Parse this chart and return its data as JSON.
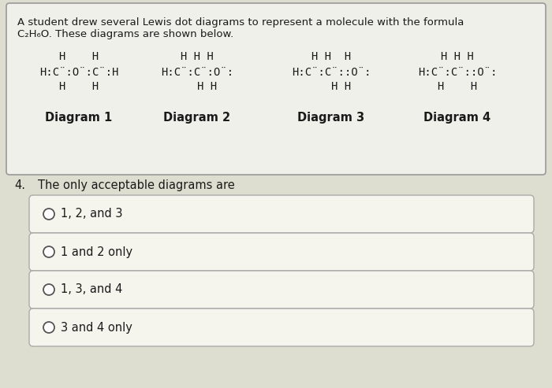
{
  "bg_color": "#deded0",
  "box_bg": "#f0f0ea",
  "border_color": "#999999",
  "title_line1": "A student drew several Lewis dot diagrams to represent a molecule with the formula",
  "title_line2": "C₂H₆O. These diagrams are shown below.",
  "question_number": "4.",
  "question_text": "The only acceptable diagrams are",
  "choices": [
    "1, 2, and 3",
    "1 and 2 only",
    "1, 3, and 4",
    "3 and 4 only"
  ],
  "diagram_labels": [
    "Diagram 1",
    "Diagram 2",
    "Diagram 3",
    "Diagram 4"
  ],
  "d1": {
    "top": "H    H",
    "mid": "H:C̈:Ö:C̈:H",
    "bot": "H    H"
  },
  "d2": {
    "top": "H H H",
    "mid": "H:C̈:C̈:Ö:",
    "bot": "   H H"
  },
  "d3": {
    "top": "H H  H",
    "mid": "H:C̈:C̈::Ö:",
    "bot": "   H H"
  },
  "d4": {
    "top": "H H H",
    "mid": "H:C̈:C̈::Ö:",
    "bot": "H    H"
  },
  "text_color": "#1a1a1a",
  "choice_box_color": "#f5f5ee",
  "choice_border": "#aaaaaa"
}
